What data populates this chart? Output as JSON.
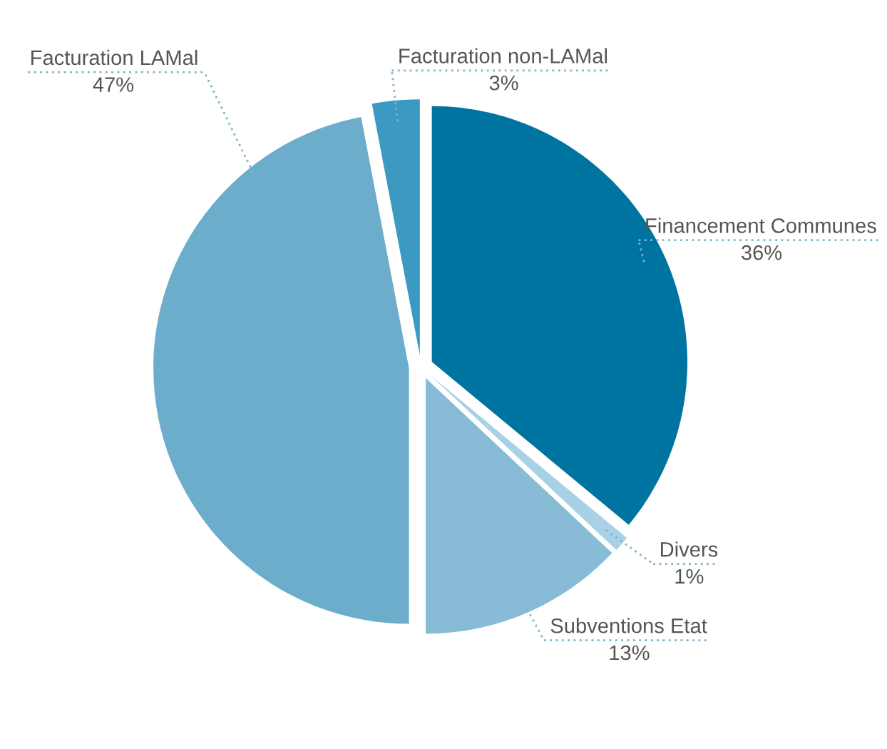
{
  "chart_data": {
    "type": "pie",
    "categories": [
      "Financement Communes",
      "Divers",
      "Subventions Etat",
      "Facturation LAMal",
      "Facturation non-LAMal"
    ],
    "values": [
      36,
      1,
      13,
      47,
      3
    ],
    "colors": [
      "#0074a0",
      "#a9d1e5",
      "#88bbd6",
      "#6badcb",
      "#3b99c2"
    ],
    "value_labels": [
      "36%",
      "1%",
      "13%",
      "47%",
      "3%"
    ]
  }
}
